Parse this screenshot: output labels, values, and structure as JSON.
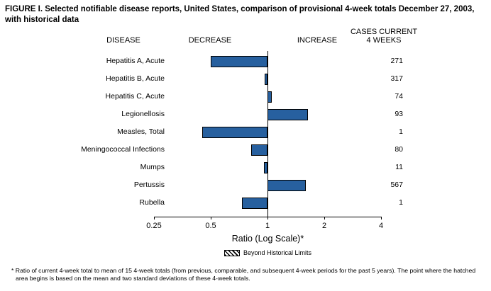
{
  "figure": {
    "title": "FIGURE I. Selected notifiable disease reports, United States, comparison of provisional 4-week totals December 27, 2003, with historical data",
    "footnote": "* Ratio of current 4-week total to mean of 15 4-week totals (from previous, comparable, and subsequent 4-week periods for the past 5 years). The point where the hatched area begins is based on the mean and two standard deviations of these 4-week totals."
  },
  "headers": {
    "disease": "DISEASE",
    "decrease": "DECREASE",
    "increase": "INCREASE",
    "cases_line1": "CASES CURRENT",
    "cases_line2": "4 WEEKS"
  },
  "chart_data": {
    "type": "bar",
    "orientation": "horizontal",
    "scale": "log",
    "baseline": 1,
    "xlim": [
      0.25,
      4
    ],
    "axis_ticks": [
      "0.25",
      "0.5",
      "1",
      "2",
      "4"
    ],
    "xlabel": "Ratio (Log Scale)*",
    "legend": [
      {
        "label": "Beyond Historical Limits",
        "pattern": "hatched"
      }
    ],
    "bar_color": "#27609f",
    "categories": [
      "Hepatitis A, Acute",
      "Hepatitis B, Acute",
      "Hepatitis C, Acute",
      "Legionellosis",
      "Measles, Total",
      "Meningococcal Infections",
      "Mumps",
      "Pertussis",
      "Rubella"
    ],
    "series": [
      {
        "name": "Ratio of current 4-week total to historical mean",
        "values": [
          0.5,
          0.97,
          1.05,
          1.64,
          0.45,
          0.82,
          0.96,
          1.6,
          0.73
        ]
      },
      {
        "name": "Cases current 4 weeks",
        "values": [
          271,
          317,
          74,
          93,
          1,
          80,
          11,
          567,
          1
        ]
      }
    ]
  }
}
